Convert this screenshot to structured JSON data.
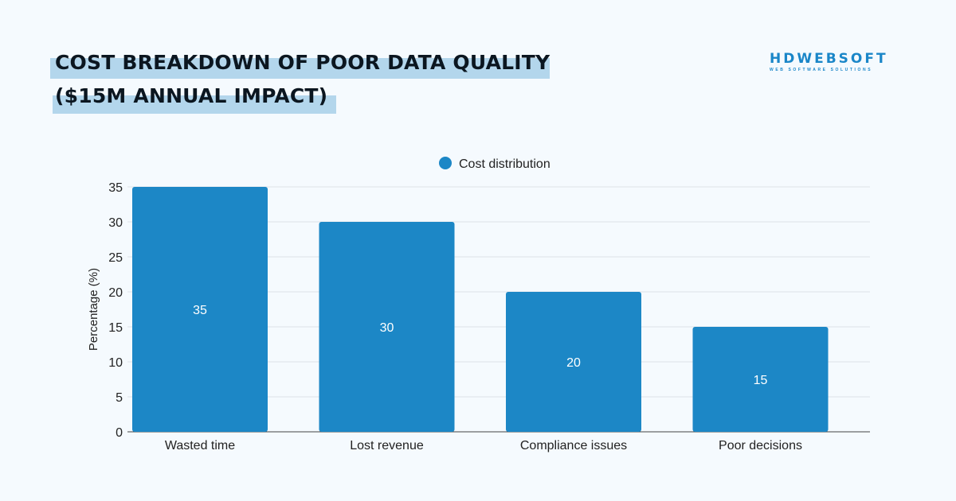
{
  "title_line1": "COST BREAKDOWN OF POOR DATA QUALITY",
  "title_line2": "($15M ANNUAL IMPACT)",
  "logo": {
    "name": "HDWEBSOFT",
    "tagline": "WEB SOFTWARE SOLUTIONS"
  },
  "chart_data": {
    "type": "bar",
    "categories": [
      "Wasted time",
      "Lost revenue",
      "Compliance issues",
      "Poor decisions"
    ],
    "series": [
      {
        "name": "Cost distribution",
        "values": [
          35,
          30,
          20,
          15
        ],
        "color": "#1c87c6"
      }
    ],
    "ylabel": "Percentage (%)",
    "xlabel": "",
    "ylim": [
      0,
      35
    ],
    "yticks": [
      0,
      5,
      10,
      15,
      20,
      25,
      30,
      35
    ],
    "grid": true,
    "legend": "top-center",
    "data_labels": true
  }
}
